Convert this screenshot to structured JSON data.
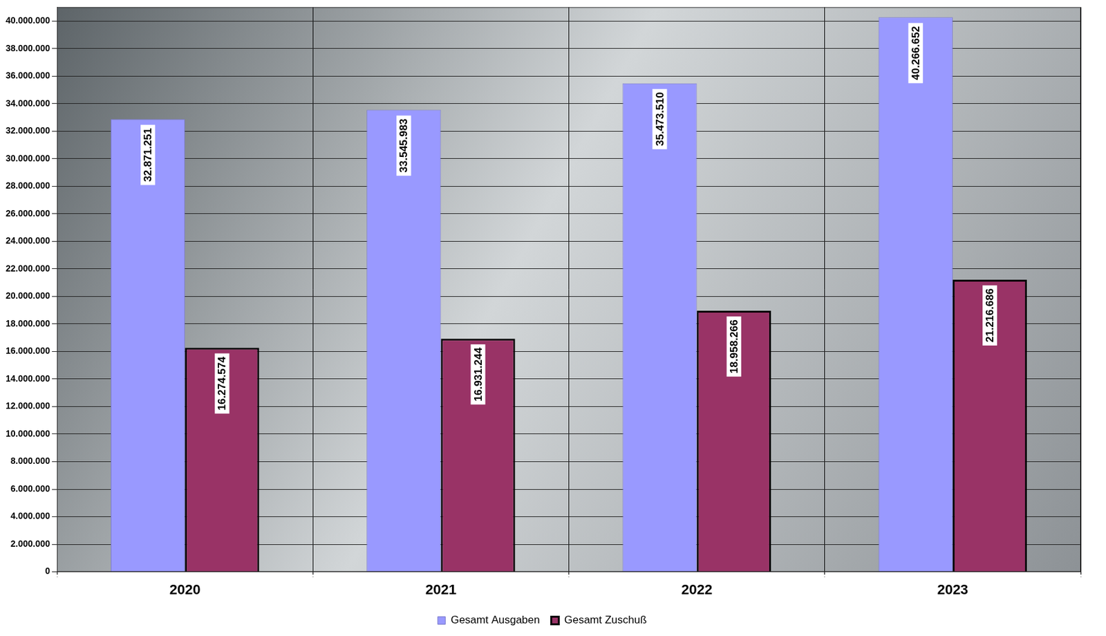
{
  "chart_data": {
    "type": "bar",
    "categories": [
      "2020",
      "2021",
      "2022",
      "2023"
    ],
    "series": [
      {
        "name": "Gesamt Ausgaben",
        "color": "#9999ff",
        "values": [
          32871251,
          33545983,
          35473510,
          40266652
        ],
        "value_labels": [
          "32.871.251",
          "33.545.983",
          "35.473.510",
          "40.266.652"
        ]
      },
      {
        "name": "Gesamt Zuschuß",
        "color": "#993366",
        "values": [
          16274574,
          16931244,
          18958266,
          21216686
        ],
        "value_labels": [
          "16.274.574",
          "16.931.244",
          "18.958.266",
          "21.216.686"
        ]
      }
    ],
    "ylim": [
      0,
      41000000
    ],
    "yticks": [
      0,
      {
        "value": 2000000,
        "label": "2.000.000"
      },
      {
        "value": 4000000,
        "label": "4.000.000"
      },
      {
        "value": 6000000,
        "label": "6.000.000"
      },
      {
        "value": 8000000,
        "label": "8.000.000"
      },
      {
        "value": 10000000,
        "label": "10.000.000"
      },
      {
        "value": 12000000,
        "label": "12.000.000"
      },
      {
        "value": 14000000,
        "label": "14.000.000"
      },
      {
        "value": 16000000,
        "label": "16.000.000"
      },
      {
        "value": 18000000,
        "label": "18.000.000"
      },
      {
        "value": 20000000,
        "label": "20.000.000"
      },
      {
        "value": 22000000,
        "label": "22.000.000"
      },
      {
        "value": 24000000,
        "label": "24.000.000"
      },
      {
        "value": 26000000,
        "label": "26.000.000"
      },
      {
        "value": 28000000,
        "label": "28.000.000"
      },
      {
        "value": 30000000,
        "label": "30.000.000"
      },
      {
        "value": 32000000,
        "label": "32.000.000"
      },
      {
        "value": 34000000,
        "label": "34.000.000"
      },
      {
        "value": 36000000,
        "label": "36.000.000"
      },
      {
        "value": 38000000,
        "label": "38.000.000"
      },
      {
        "value": 40000000,
        "label": "40.000.000"
      }
    ],
    "grid": true,
    "legend": "bottom",
    "data_labels": true
  }
}
